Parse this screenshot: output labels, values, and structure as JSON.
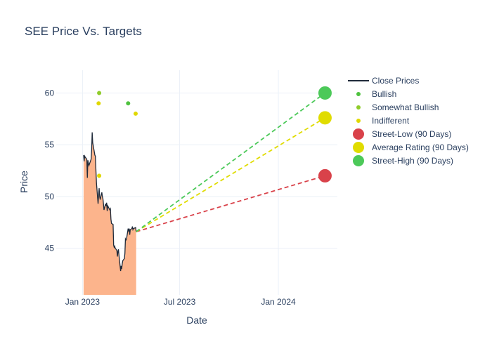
{
  "chart_data": {
    "type": "line",
    "title": "SEE Price Vs. Targets",
    "xlabel": "Date",
    "ylabel": "Price",
    "xlim": [
      "2022-11-13",
      "2024-04-20"
    ],
    "ylim": [
      40.5,
      62.2
    ],
    "x_ticks": [
      {
        "date": "2023-01-01",
        "label": "Jan 2023"
      },
      {
        "date": "2023-07-01",
        "label": "Jul 2023"
      },
      {
        "date": "2024-01-01",
        "label": "Jan 2024"
      }
    ],
    "y_ticks": [
      45,
      50,
      55,
      60
    ],
    "grid": true,
    "legend_position": "top-right",
    "colors": {
      "close": "#1f2a3a",
      "fill": "#fcb48c",
      "bullish": "#4fc23f",
      "somewhat_bullish": "#8fcc2a",
      "indifferent": "#e0d800",
      "street_low": "#d9424a",
      "average": "#e0dc00",
      "street_high": "#4cc959"
    },
    "legend": [
      {
        "key": "close",
        "label": "Close Prices",
        "symbol": "line"
      },
      {
        "key": "bullish",
        "label": "Bullish",
        "symbol": "dot"
      },
      {
        "key": "somewhat_bullish",
        "label": "Somewhat Bullish",
        "symbol": "dot"
      },
      {
        "key": "indifferent",
        "label": "Indifferent",
        "symbol": "dot"
      },
      {
        "key": "street_low",
        "label": "Street-Low (90 Days)",
        "symbol": "big"
      },
      {
        "key": "average",
        "label": "Average Rating (90 Days)",
        "symbol": "big"
      },
      {
        "key": "street_high",
        "label": "Street-High (90 Days)",
        "symbol": "big"
      }
    ],
    "close_prices": {
      "name": "Close Prices",
      "points": [
        [
          "2023-01-03",
          54.0
        ],
        [
          "2023-01-04",
          53.4
        ],
        [
          "2023-01-05",
          53.9
        ],
        [
          "2023-01-06",
          53.8
        ],
        [
          "2023-01-09",
          53.6
        ],
        [
          "2023-01-10",
          51.8
        ],
        [
          "2023-01-11",
          53.5
        ],
        [
          "2023-01-12",
          53.2
        ],
        [
          "2023-01-13",
          53.0
        ],
        [
          "2023-01-17",
          53.6
        ],
        [
          "2023-01-18",
          54.5
        ],
        [
          "2023-01-19",
          56.2
        ],
        [
          "2023-01-20",
          55.2
        ],
        [
          "2023-01-23",
          54.3
        ],
        [
          "2023-01-24",
          54.0
        ],
        [
          "2023-01-25",
          53.9
        ],
        [
          "2023-01-26",
          52.5
        ],
        [
          "2023-01-27",
          51.3
        ],
        [
          "2023-01-30",
          49.3
        ],
        [
          "2023-01-31",
          50.2
        ],
        [
          "2023-02-01",
          50.8
        ],
        [
          "2023-02-02",
          50.0
        ],
        [
          "2023-02-03",
          49.7
        ],
        [
          "2023-02-06",
          50.4
        ],
        [
          "2023-02-07",
          50.0
        ],
        [
          "2023-02-08",
          49.8
        ],
        [
          "2023-02-09",
          49.3
        ],
        [
          "2023-02-10",
          48.7
        ],
        [
          "2023-02-13",
          49.3
        ],
        [
          "2023-02-14",
          49.1
        ],
        [
          "2023-02-15",
          49.4
        ],
        [
          "2023-02-16",
          48.6
        ],
        [
          "2023-02-17",
          49.1
        ],
        [
          "2023-02-21",
          48.7
        ],
        [
          "2023-02-22",
          48.8
        ],
        [
          "2023-02-23",
          47.8
        ],
        [
          "2023-02-24",
          47.4
        ],
        [
          "2023-02-27",
          47.3
        ],
        [
          "2023-02-28",
          45.3
        ],
        [
          "2023-03-01",
          45.1
        ],
        [
          "2023-03-02",
          45.2
        ],
        [
          "2023-03-03",
          45.0
        ],
        [
          "2023-03-06",
          44.8
        ],
        [
          "2023-03-07",
          44.2
        ],
        [
          "2023-03-08",
          44.7
        ],
        [
          "2023-03-09",
          44.9
        ],
        [
          "2023-03-10",
          44.3
        ],
        [
          "2023-03-13",
          42.8
        ],
        [
          "2023-03-14",
          43.3
        ],
        [
          "2023-03-15",
          43.0
        ],
        [
          "2023-03-16",
          43.5
        ],
        [
          "2023-03-17",
          43.8
        ],
        [
          "2023-03-20",
          44.0
        ],
        [
          "2023-03-21",
          44.5
        ],
        [
          "2023-03-22",
          45.9
        ],
        [
          "2023-03-23",
          45.8
        ],
        [
          "2023-03-24",
          45.9
        ],
        [
          "2023-03-27",
          46.9
        ],
        [
          "2023-03-28",
          46.7
        ],
        [
          "2023-03-29",
          46.9
        ],
        [
          "2023-03-30",
          46.3
        ],
        [
          "2023-03-31",
          46.8
        ],
        [
          "2023-04-03",
          46.9
        ],
        [
          "2023-04-04",
          47.1
        ],
        [
          "2023-04-05",
          46.8
        ],
        [
          "2023-04-06",
          46.9
        ],
        [
          "2023-04-10",
          47.0
        ],
        [
          "2023-04-11",
          46.6
        ]
      ]
    },
    "ratings": [
      {
        "category": "somewhat_bullish",
        "date": "2023-02-01",
        "value": 60
      },
      {
        "category": "indifferent",
        "date": "2023-01-31",
        "value": 59
      },
      {
        "category": "indifferent",
        "date": "2023-02-01",
        "value": 52
      },
      {
        "category": "bullish",
        "date": "2023-03-27",
        "value": 59
      },
      {
        "category": "indifferent",
        "date": "2023-04-10",
        "value": 58
      }
    ],
    "targets": {
      "start": [
        "2023-04-11",
        46.6
      ],
      "date": "2024-03-28",
      "street_low": 52,
      "average": 57.6,
      "street_high": 60
    }
  }
}
